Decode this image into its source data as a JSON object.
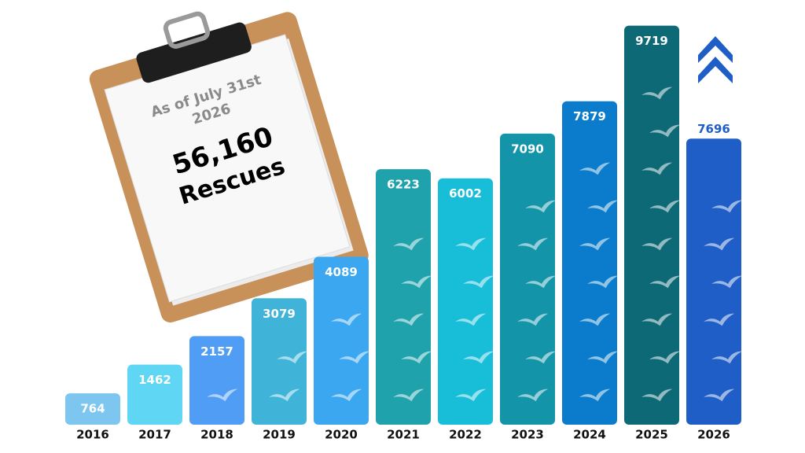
{
  "chart_data": {
    "type": "bar",
    "categories": [
      "2016",
      "2017",
      "2018",
      "2019",
      "2020",
      "2021",
      "2022",
      "2023",
      "2024",
      "2025",
      "2026"
    ],
    "values": [
      764,
      1462,
      2157,
      3079,
      4089,
      6223,
      6002,
      7090,
      7879,
      9719,
      7696
    ],
    "colors": [
      "#7cc6ef",
      "#5ed6f4",
      "#4f9df4",
      "#3fb4d8",
      "#3aa7f0",
      "#1fa2ac",
      "#18bdd8",
      "#1394a8",
      "#0b7ccb",
      "#0e6977",
      "#1e5ec6"
    ]
  },
  "clipboard": {
    "date_lines": [
      "As of July 31st",
      "2026"
    ],
    "total": "56,160",
    "unit": "Rescues"
  }
}
